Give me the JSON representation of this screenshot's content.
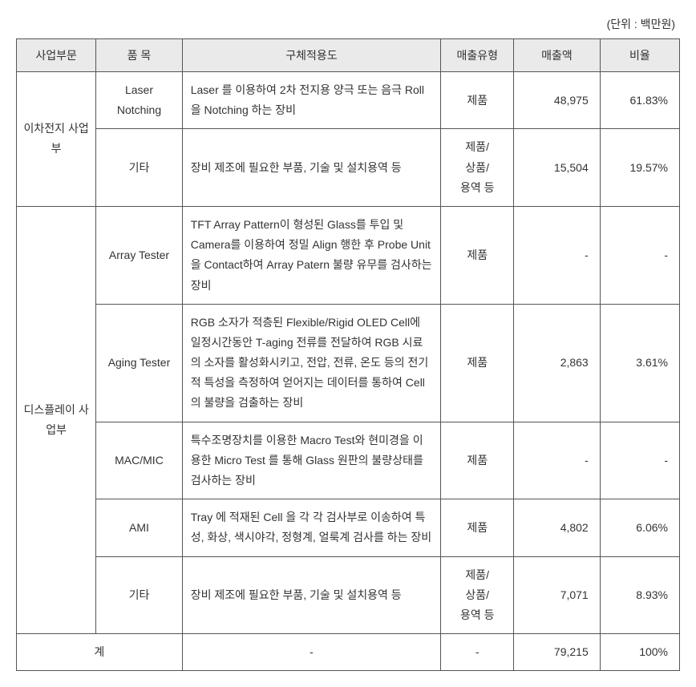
{
  "unit_label": "(단위 : 백만원)",
  "headers": {
    "division": "사업부문",
    "item": "품 목",
    "desc": "구체적용도",
    "type": "매출유형",
    "amount": "매출액",
    "ratio": "비율"
  },
  "divisions": {
    "battery": "이차전지 사업부",
    "display": "디스플레이 사업부"
  },
  "rows": {
    "r1": {
      "item": "Laser Notching",
      "desc": "Laser 를 이용하여 2차 전지용 양극 또는 음극 Roll을 Notching 하는 장비",
      "type": "제품",
      "amount": "48,975",
      "ratio": "61.83%"
    },
    "r2": {
      "item": "기타",
      "desc": "장비 제조에 필요한 부품, 기술 및 설치용역 등",
      "type": "제품/\n상품/\n용역 등",
      "amount": "15,504",
      "ratio": "19.57%"
    },
    "r3": {
      "item": "Array Tester",
      "desc": "TFT Array Pattern이 형성된 Glass를 투입 및 Camera를 이용하여 정밀 Align 행한 후 Probe Unit을 Contact하여 Array Patern 불량 유무를 검사하는 장비",
      "type": "제품",
      "amount": "-",
      "ratio": "-"
    },
    "r4": {
      "item": "Aging Tester",
      "desc": "RGB 소자가 적층된 Flexible/Rigid OLED Cell에 일정시간동안 T-aging 전류를 전달하여 RGB 시료의 소자를 활성화시키고, 전압, 전류, 온도 등의 전기적 특성을 측정하여 얻어지는 데이터를 통하여 Cell의 불량을 검출하는 장비",
      "type": "제품",
      "amount": "2,863",
      "ratio": "3.61%"
    },
    "r5": {
      "item": "MAC/MIC",
      "desc": "특수조명장치를 이용한 Macro Test와 현미경을 이용한 Micro Test 를 통해 Glass 원판의 불량상태를 검사하는 장비",
      "type": "제품",
      "amount": "-",
      "ratio": "-"
    },
    "r6": {
      "item": "AMI",
      "desc": "Tray 에 적재된 Cell 을 각 각 검사부로 이송하여 특성, 화상, 색시야각, 정형계, 얼룩계 검사를 하는 장비",
      "type": "제품",
      "amount": "4,802",
      "ratio": "6.06%"
    },
    "r7": {
      "item": "기타",
      "desc": "장비 제조에 필요한 부품, 기술 및 설치용역 등",
      "type": "제품/\n상품/\n용역 등",
      "amount": "7,071",
      "ratio": "8.93%"
    }
  },
  "total": {
    "label": "계",
    "desc": "-",
    "type": "-",
    "amount": "79,215",
    "ratio": "100%"
  }
}
